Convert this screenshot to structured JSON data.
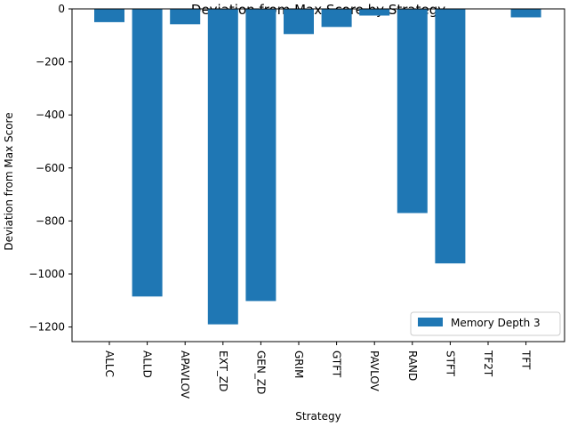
{
  "chart_data": {
    "type": "bar",
    "title": "Deviation from Max Score by Strategy",
    "xlabel": "Strategy",
    "ylabel": "Deviation from Max Score",
    "categories": [
      "ALLC",
      "ALLD",
      "APAVLOV",
      "EXT_ZD",
      "GEN_ZD",
      "GRIM",
      "GTFT",
      "PAVLOV",
      "RAND",
      "STFT",
      "TF2T",
      "TFT"
    ],
    "series": [
      {
        "name": "Memory Depth 3",
        "values": [
          -50,
          -1085,
          -58,
          -1190,
          -1102,
          -95,
          -68,
          -25,
          -770,
          -960,
          0,
          -32
        ],
        "color": "#1f77b4"
      }
    ],
    "ylim": [
      -1255,
      0
    ],
    "yticks": [
      0,
      -200,
      -400,
      -600,
      -800,
      -1000,
      -1200
    ],
    "ytick_labels": [
      "0",
      "−200",
      "−400",
      "−600",
      "−800",
      "−1000",
      "−1200"
    ],
    "legend_position": "lower-right",
    "grid": false
  }
}
